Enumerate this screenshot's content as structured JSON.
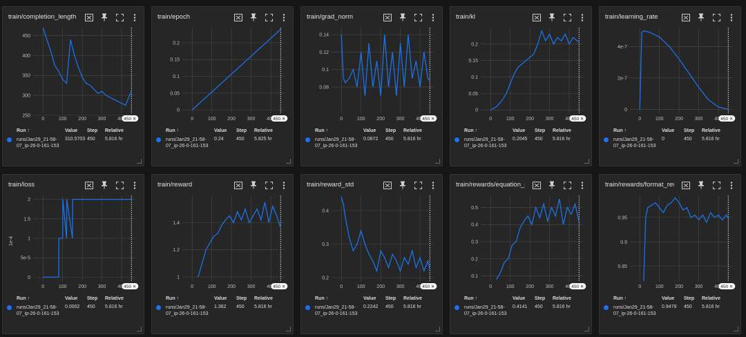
{
  "icons": {
    "fit": "fit-to-domain-icon",
    "pin": "pin-icon",
    "fullscreen": "fullscreen-icon",
    "menu": "more-vert-icon"
  },
  "accent_color": "#1a73e8",
  "table_headers": {
    "run": "Run ↑",
    "value": "Value",
    "step": "Step",
    "relative": "Relative"
  },
  "cards": [
    {
      "title": "train/completion_length",
      "run": "runs/Jan29_21-58-07_ip-26-0-161-153",
      "value": "310.5703",
      "step": "450",
      "relative": "5.816 hr",
      "badge": "450 ✕",
      "chart_data": {
        "type": "line",
        "xlim": [
          -50,
          470
        ],
        "ylim": [
          255,
          470
        ],
        "xticks": [
          "0",
          "100",
          "200",
          "300",
          "400"
        ],
        "yticks": [
          "250",
          "300",
          "350",
          "400",
          "450"
        ],
        "series": [
          {
            "x": [
              0,
              20,
              40,
              60,
              80,
              100,
              120,
              140,
              160,
              180,
              200,
              220,
              240,
              260,
              280,
              300,
              320,
              340,
              360,
              380,
              400,
              420,
              440,
              450
            ],
            "y": [
              470,
              440,
              410,
              375,
              360,
              340,
              330,
              440,
              400,
              370,
              345,
              330,
              325,
              315,
              305,
              310,
              300,
              295,
              290,
              285,
              280,
              275,
              300,
              310
            ]
          }
        ]
      }
    },
    {
      "title": "train/epoch",
      "run": "runs/Jan29_21-58-07_ip-26-0-161-153",
      "value": "0.24",
      "step": "450",
      "relative": "5.825 hr",
      "badge": "450 ✕",
      "chart_data": {
        "type": "line",
        "xlim": [
          -50,
          470
        ],
        "ylim": [
          -0.01,
          0.245
        ],
        "xticks": [
          "0",
          "100",
          "200",
          "300",
          "400"
        ],
        "yticks": [
          "0",
          "0.05",
          "0.1",
          "0.15",
          "0.2"
        ],
        "series": [
          {
            "x": [
              0,
              450
            ],
            "y": [
              0,
              0.24
            ]
          }
        ]
      }
    },
    {
      "title": "train/grad_norm",
      "run": "runs/Jan29_21-58-07_ip-26-0-161-153",
      "value": "0.0872",
      "step": "450",
      "relative": "5.816 hr",
      "badge": "450 ✕",
      "chart_data": {
        "type": "line",
        "xlim": [
          -50,
          470
        ],
        "ylim": [
          0.05,
          0.148
        ],
        "xticks": [
          "0",
          "100",
          "200",
          "300",
          "400"
        ],
        "yticks": [
          "0.08",
          "0.1",
          "0.12",
          "0.14"
        ],
        "series": [
          {
            "x": [
              0,
              10,
              20,
              40,
              60,
              80,
              100,
              120,
              140,
              160,
              180,
              200,
              220,
              240,
              260,
              280,
              300,
              320,
              340,
              360,
              380,
              400,
              420,
              440,
              450
            ],
            "y": [
              0.14,
              0.09,
              0.085,
              0.09,
              0.1,
              0.08,
              0.12,
              0.07,
              0.13,
              0.08,
              0.11,
              0.07,
              0.14,
              0.08,
              0.12,
              0.07,
              0.13,
              0.08,
              0.14,
              0.09,
              0.11,
              0.08,
              0.12,
              0.09,
              0.087
            ]
          }
        ]
      }
    },
    {
      "title": "train/kl",
      "run": "runs/Jan29_21-58-07_ip-26-0-161-153",
      "value": "0.2045",
      "step": "450",
      "relative": "5.816 hr",
      "badge": "450 ✕",
      "chart_data": {
        "type": "line",
        "xlim": [
          -50,
          470
        ],
        "ylim": [
          -0.01,
          0.25
        ],
        "xticks": [
          "0",
          "100",
          "200",
          "300",
          "400"
        ],
        "yticks": [
          "0",
          "0.05",
          "0.1",
          "0.15",
          "0.2"
        ],
        "series": [
          {
            "x": [
              0,
              30,
              60,
              80,
              100,
              120,
              140,
              160,
              180,
              200,
              220,
              240,
              260,
              280,
              300,
              320,
              340,
              360,
              380,
              400,
              420,
              440,
              450
            ],
            "y": [
              0,
              0.01,
              0.03,
              0.05,
              0.08,
              0.11,
              0.13,
              0.14,
              0.15,
              0.16,
              0.17,
              0.2,
              0.24,
              0.21,
              0.23,
              0.2,
              0.22,
              0.21,
              0.23,
              0.2,
              0.22,
              0.21,
              0.2045
            ]
          }
        ]
      }
    },
    {
      "title": "train/learning_rate",
      "run": "runs/Jan29_21-58-07_ip-26-0-161-153",
      "value": "0",
      "step": "450",
      "relative": "5.816 hr",
      "badge": "450 ✕",
      "chart_data": {
        "type": "line",
        "xlim": [
          -50,
          470
        ],
        "ylim": [
          -2.5e-08,
          5.2e-07
        ],
        "xticks": [
          "0",
          "100",
          "200",
          "300",
          "400"
        ],
        "yticks": [
          "0",
          "2e-7",
          "4e-7"
        ],
        "series": [
          {
            "x": [
              0,
              10,
              20,
              50,
              100,
              150,
              200,
              250,
              300,
              350,
              400,
              450
            ],
            "y": [
              0,
              4.9e-07,
              5e-07,
              4.9e-07,
              4.6e-07,
              4e-07,
              3.2e-07,
              2.3e-07,
              1.4e-07,
              6e-08,
              1.5e-08,
              0
            ]
          }
        ]
      }
    },
    {
      "title": "train/loss",
      "run": "runs/Jan29_21-58-07_ip-26-0-161-153",
      "value": "0.0002",
      "step": "450",
      "relative": "5.816 hr",
      "badge": "450 ✕",
      "chart_data": {
        "type": "line",
        "xlim": [
          -50,
          470
        ],
        "ylim": [
          -0.1,
          2.1
        ],
        "xticks": [
          "0",
          "100",
          "200",
          "300",
          "400"
        ],
        "yticks": [
          "0",
          "5e-5",
          "1",
          "1.5",
          "2"
        ],
        "ylabel": "1e-4",
        "series": [
          {
            "x": [
              0,
              80,
              81,
              100,
              101,
              120,
              121,
              150,
              151,
              200,
              201,
              250,
              251,
              300,
              301,
              350,
              351,
              400,
              401,
              450
            ],
            "y": [
              0,
              0,
              1,
              1,
              2,
              1,
              2,
              1,
              2,
              2,
              2,
              2,
              2,
              2,
              2,
              2,
              2,
              2,
              2,
              2
            ]
          }
        ]
      }
    },
    {
      "title": "train/reward",
      "run": "runs/Jan29_21-58-07_ip-26-0-161-153",
      "value": "1.362",
      "step": "450",
      "relative": "5.816 hr",
      "badge": "450 ✕",
      "chart_data": {
        "type": "line",
        "xlim": [
          -50,
          470
        ],
        "ylim": [
          0.97,
          1.6
        ],
        "xticks": [
          "0",
          "100",
          "200",
          "300",
          "400"
        ],
        "yticks": [
          "1",
          "1.2",
          "1.4"
        ],
        "series": [
          {
            "x": [
              30,
              50,
              70,
              90,
              110,
              130,
              150,
              170,
              190,
              210,
              230,
              250,
              270,
              290,
              310,
              330,
              350,
              370,
              390,
              410,
              430,
              450
            ],
            "y": [
              1.0,
              1.1,
              1.2,
              1.25,
              1.3,
              1.32,
              1.38,
              1.42,
              1.45,
              1.4,
              1.48,
              1.42,
              1.5,
              1.4,
              1.45,
              1.5,
              1.42,
              1.55,
              1.4,
              1.52,
              1.45,
              1.362
            ]
          }
        ]
      }
    },
    {
      "title": "train/reward_std",
      "run": "runs/Jan29_21-58-07_ip-26-0-161-153",
      "value": "0.2242",
      "step": "450",
      "relative": "5.816 hr",
      "badge": "450 ✕",
      "chart_data": {
        "type": "line",
        "xlim": [
          -50,
          470
        ],
        "ylim": [
          0.19,
          0.445
        ],
        "xticks": [
          "0",
          "100",
          "200",
          "300",
          "400"
        ],
        "yticks": [
          "0.2",
          "0.3",
          "0.4"
        ],
        "series": [
          {
            "x": [
              0,
              10,
              20,
              40,
              60,
              80,
              100,
              120,
              140,
              160,
              180,
              200,
              220,
              240,
              260,
              280,
              300,
              320,
              340,
              360,
              380,
              400,
              420,
              440,
              450
            ],
            "y": [
              0.44,
              0.42,
              0.38,
              0.32,
              0.28,
              0.3,
              0.34,
              0.3,
              0.27,
              0.25,
              0.22,
              0.28,
              0.26,
              0.23,
              0.27,
              0.25,
              0.22,
              0.26,
              0.24,
              0.28,
              0.23,
              0.26,
              0.22,
              0.25,
              0.224
            ]
          }
        ]
      }
    },
    {
      "title": "train/rewards/equation_reward_func",
      "run": "runs/Jan29_21-58-07_ip-26-0-161-153",
      "value": "0.4141",
      "step": "450",
      "relative": "5.816 hr",
      "badge": "450 ✕",
      "chart_data": {
        "type": "line",
        "xlim": [
          -50,
          470
        ],
        "ylim": [
          0.07,
          0.57
        ],
        "xticks": [
          "0",
          "100",
          "200",
          "300",
          "400"
        ],
        "yticks": [
          "0.1",
          "0.2",
          "0.3",
          "0.4",
          "0.5"
        ],
        "series": [
          {
            "x": [
              30,
              50,
              70,
              90,
              110,
              130,
              150,
              170,
              190,
              210,
              230,
              250,
              270,
              290,
              310,
              330,
              350,
              370,
              390,
              410,
              430,
              450
            ],
            "y": [
              0.08,
              0.12,
              0.18,
              0.2,
              0.28,
              0.3,
              0.38,
              0.42,
              0.45,
              0.4,
              0.5,
              0.44,
              0.52,
              0.42,
              0.5,
              0.45,
              0.55,
              0.4,
              0.5,
              0.46,
              0.52,
              0.414
            ]
          }
        ]
      }
    },
    {
      "title": "train/rewards/format_reward_func",
      "run": "runs/Jan29_21-58-07_ip-26-0-161-153",
      "value": "0.9479",
      "step": "450",
      "relative": "5.816 hr",
      "badge": "450 ✕",
      "chart_data": {
        "type": "line",
        "xlim": [
          -50,
          470
        ],
        "ylim": [
          0.82,
          0.995
        ],
        "xticks": [
          "0",
          "100",
          "200",
          "300",
          "400"
        ],
        "yticks": [
          "0.85",
          "0.9",
          "0.95"
        ],
        "series": [
          {
            "x": [
              20,
              30,
              40,
              60,
              80,
              100,
              120,
              140,
              160,
              180,
              200,
              220,
              240,
              260,
              280,
              300,
              320,
              340,
              360,
              380,
              400,
              420,
              440,
              450
            ],
            "y": [
              0.82,
              0.95,
              0.97,
              0.975,
              0.98,
              0.97,
              0.96,
              0.975,
              0.98,
              0.99,
              0.98,
              0.965,
              0.97,
              0.95,
              0.955,
              0.945,
              0.955,
              0.94,
              0.96,
              0.95,
              0.955,
              0.945,
              0.955,
              0.948
            ]
          }
        ]
      }
    }
  ]
}
